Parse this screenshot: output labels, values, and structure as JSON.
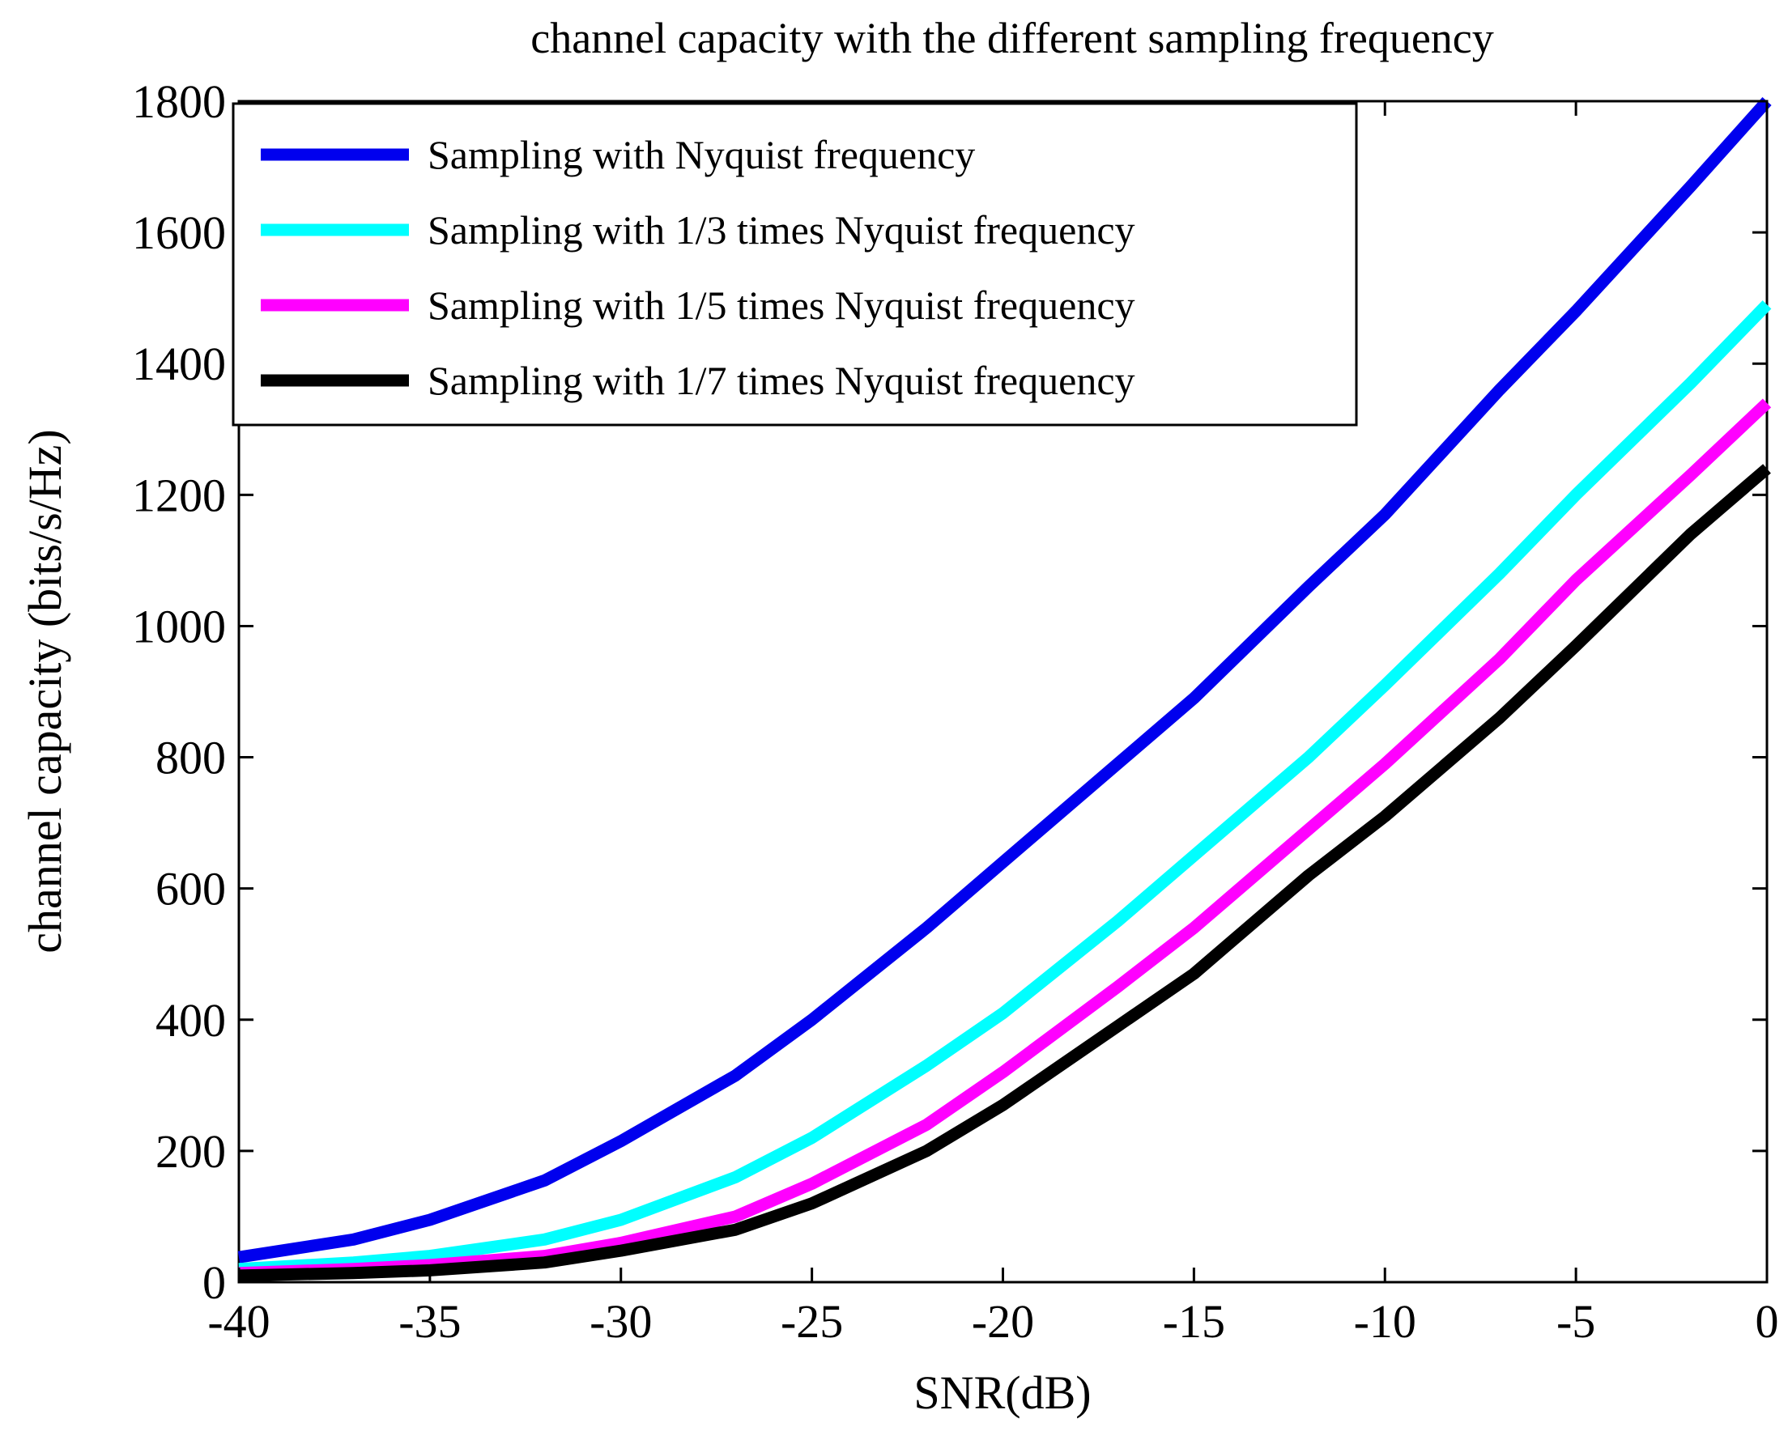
{
  "chart_data": {
    "type": "line",
    "title": "channel capacity with the different sampling frequency",
    "xlabel": "SNR(dB)",
    "ylabel": "channel capacity (bits/s/Hz)",
    "xlim": [
      -40,
      0
    ],
    "ylim": [
      0,
      1800
    ],
    "xticks": [
      -40,
      -35,
      -30,
      -25,
      -20,
      -15,
      -10,
      -5,
      0
    ],
    "xtick_labels": [
      "-40",
      "-35",
      "-30",
      "-25",
      "-20",
      "-15",
      "-10",
      "-5",
      "0"
    ],
    "yticks": [
      0,
      200,
      400,
      600,
      800,
      1000,
      1200,
      1400,
      1600,
      1800
    ],
    "ytick_labels": [
      "0",
      "200",
      "400",
      "600",
      "800",
      "1000",
      "1200",
      "1400",
      "1600",
      "1800"
    ],
    "grid": false,
    "legend_position": "top-left",
    "x": [
      -40,
      -37,
      -35,
      -32,
      -30,
      -27,
      -25,
      -22,
      -20,
      -17,
      -15,
      -12,
      -10,
      -7,
      -5,
      -2,
      0
    ],
    "series": [
      {
        "name": "Sampling with Nyquist frequency",
        "color": "#0000ee",
        "values": [
          38,
          65,
          95,
          155,
          215,
          315,
          400,
          540,
          640,
          790,
          890,
          1060,
          1170,
          1360,
          1480,
          1670,
          1800
        ]
      },
      {
        "name": "Sampling with 1/3 times Nyquist frequency",
        "color": "#00ffff",
        "values": [
          20,
          30,
          40,
          65,
          95,
          160,
          220,
          330,
          410,
          550,
          650,
          800,
          910,
          1080,
          1200,
          1370,
          1490
        ]
      },
      {
        "name": "Sampling with 1/5 times Nyquist frequency",
        "color": "#ff00ff",
        "values": [
          14,
          20,
          26,
          40,
          60,
          100,
          150,
          240,
          320,
          450,
          540,
          690,
          790,
          950,
          1070,
          1230,
          1340
        ]
      },
      {
        "name": "Sampling with 1/7 times Nyquist frequency",
        "color": "#000000",
        "values": [
          10,
          14,
          18,
          30,
          48,
          80,
          120,
          200,
          270,
          390,
          470,
          620,
          710,
          860,
          970,
          1140,
          1240
        ]
      }
    ]
  }
}
